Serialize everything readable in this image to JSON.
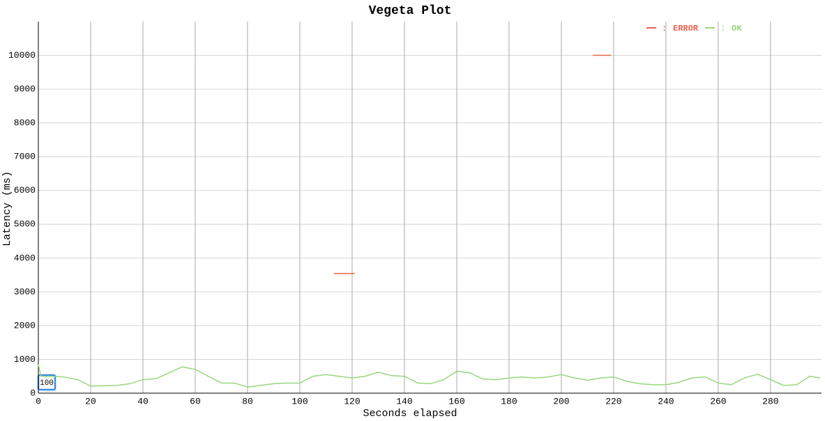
{
  "chart_data": {
    "type": "line",
    "title": "Vegeta Plot",
    "xlabel": "Seconds elapsed",
    "ylabel": "Latency (ms)",
    "legend_separator": ":",
    "annotation": "100",
    "xlim": [
      0,
      299.5
    ],
    "ylim": [
      0,
      11000
    ],
    "xticks": [
      0,
      20,
      40,
      60,
      80,
      100,
      120,
      140,
      160,
      180,
      200,
      220,
      240,
      260,
      280
    ],
    "yticks": [
      0,
      1000,
      2000,
      3000,
      4000,
      5000,
      6000,
      7000,
      8000,
      9000,
      10000
    ],
    "grid": true,
    "legend": "top-right",
    "series": [
      {
        "name": "ERROR",
        "color": "#e8624f",
        "x": [
          113,
          121,
          165,
          212,
          219
        ],
        "values": [
          3540,
          3540,
          null,
          10000,
          10000
        ]
      },
      {
        "name": "OK",
        "color": "#97d77e",
        "x": [
          0,
          1,
          5,
          10,
          15,
          20,
          25,
          30,
          35,
          40,
          45,
          50,
          55,
          60,
          65,
          70,
          75,
          80,
          85,
          90,
          95,
          100,
          105,
          110,
          115,
          120,
          125,
          130,
          135,
          140,
          145,
          150,
          155,
          160,
          165,
          170,
          175,
          180,
          185,
          190,
          195,
          200,
          205,
          210,
          215,
          220,
          225,
          230,
          235,
          240,
          245,
          250,
          255,
          260,
          265,
          270,
          275,
          280,
          285,
          290,
          295,
          299
        ],
        "values": [
          850,
          500,
          500,
          480,
          400,
          210,
          220,
          230,
          280,
          400,
          430,
          600,
          780,
          700,
          500,
          300,
          300,
          180,
          230,
          280,
          300,
          300,
          500,
          550,
          500,
          450,
          500,
          620,
          520,
          500,
          300,
          280,
          400,
          650,
          600,
          420,
          400,
          450,
          480,
          450,
          480,
          550,
          450,
          380,
          450,
          480,
          350,
          280,
          250,
          250,
          320,
          450,
          480,
          300,
          250,
          450,
          560,
          400,
          230,
          250,
          500,
          450
        ]
      }
    ]
  }
}
